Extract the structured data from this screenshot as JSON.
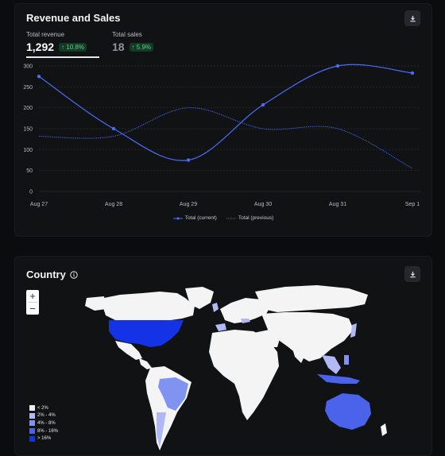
{
  "revenue_panel": {
    "title": "Revenue and Sales",
    "download_icon": "download-icon",
    "kpis": [
      {
        "label": "Total revenue",
        "value": "1,292",
        "delta": "↑ 10.8%"
      },
      {
        "label": "Total sales",
        "value": "18",
        "delta": "↑ 5.9%"
      }
    ],
    "legend": {
      "current": "Total (current)",
      "previous": "Total (previous)"
    }
  },
  "chart_data": {
    "type": "line",
    "x": [
      "Aug 27",
      "Aug 28",
      "Aug 29",
      "Aug 30",
      "Aug 31",
      "Sep 1"
    ],
    "y_ticks": [
      "0",
      "50",
      "100",
      "150",
      "200",
      "250",
      "300"
    ],
    "ylim": [
      0,
      300
    ],
    "grid": true,
    "legend_position": "bottom",
    "series": [
      {
        "name": "Total (current)",
        "style": "solid",
        "color": "#4a6cf7",
        "values": [
          275,
          150,
          75,
          207,
          300,
          283
        ]
      },
      {
        "name": "Total (previous)",
        "style": "dotted",
        "color": "#4a6cf7",
        "values": [
          132,
          132,
          200,
          150,
          150,
          55
        ]
      }
    ]
  },
  "country_panel": {
    "title": "Country",
    "info_icon": "info-icon",
    "download_icon": "download-icon",
    "zoom_in": "+",
    "zoom_out": "−",
    "legend": [
      {
        "label": "< 2%",
        "color": "#e9ebf5"
      },
      {
        "label": "2% - 4%",
        "color": "#b0b9f5"
      },
      {
        "label": "4% - 8%",
        "color": "#8193f0"
      },
      {
        "label": "8% - 16%",
        "color": "#4a63ea"
      },
      {
        "label": "> 16%",
        "color": "#1433e6"
      }
    ],
    "colors": {
      "base": "#f4f4f4",
      "usa": "#1433e6",
      "australia": "#4a63ea",
      "brazil": "#8193f0",
      "light": "#b0b9f5",
      "ocean": "#111214"
    }
  }
}
